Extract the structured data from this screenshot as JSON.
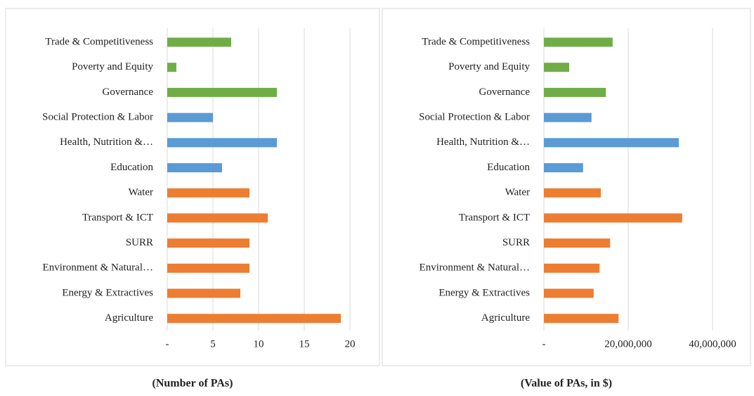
{
  "chart_data": [
    {
      "type": "bar",
      "orientation": "horizontal",
      "caption": "(Number of PAs)",
      "categories": [
        "Trade & Competitiveness",
        "Poverty and Equity",
        "Governance",
        "Social Protection & Labor",
        "Health, Nutrition &…",
        "Education",
        "Water",
        "Transport & ICT",
        "SURR",
        "Environment & Natural…",
        "Energy & Extractives",
        "Agriculture"
      ],
      "values": [
        7,
        1,
        12,
        5,
        12,
        6,
        9,
        11,
        9,
        9,
        8,
        19
      ],
      "colors": [
        "#70ad47",
        "#70ad47",
        "#70ad47",
        "#5b9bd5",
        "#5b9bd5",
        "#5b9bd5",
        "#ed7d31",
        "#ed7d31",
        "#ed7d31",
        "#ed7d31",
        "#ed7d31",
        "#ed7d31"
      ],
      "xlim": [
        0,
        20
      ],
      "xticks": [
        {
          "value": 0,
          "label": "-"
        },
        5,
        10,
        15,
        20
      ],
      "grid": true
    },
    {
      "type": "bar",
      "orientation": "horizontal",
      "caption": "(Value of PAs, in $)",
      "categories": [
        "Trade & Competitiveness",
        "Poverty and Equity",
        "Governance",
        "Social Protection & Labor",
        "Health, Nutrition &…",
        "Education",
        "Water",
        "Transport & ICT",
        "SURR",
        "Environment & Natural…",
        "Energy & Extractives",
        "Agriculture"
      ],
      "values": [
        16300000,
        6000000,
        14700000,
        11300000,
        32000000,
        9300000,
        13500000,
        32800000,
        15700000,
        13200000,
        11800000,
        17700000
      ],
      "colors": [
        "#70ad47",
        "#70ad47",
        "#70ad47",
        "#5b9bd5",
        "#5b9bd5",
        "#5b9bd5",
        "#ed7d31",
        "#ed7d31",
        "#ed7d31",
        "#ed7d31",
        "#ed7d31",
        "#ed7d31"
      ],
      "xlim": [
        0,
        40000000
      ],
      "xticks": [
        {
          "value": 0,
          "label": "-"
        },
        {
          "value": 20000000,
          "label": "20,000,000"
        },
        {
          "value": 40000000,
          "label": "40,000,000"
        }
      ],
      "grid": true
    }
  ]
}
